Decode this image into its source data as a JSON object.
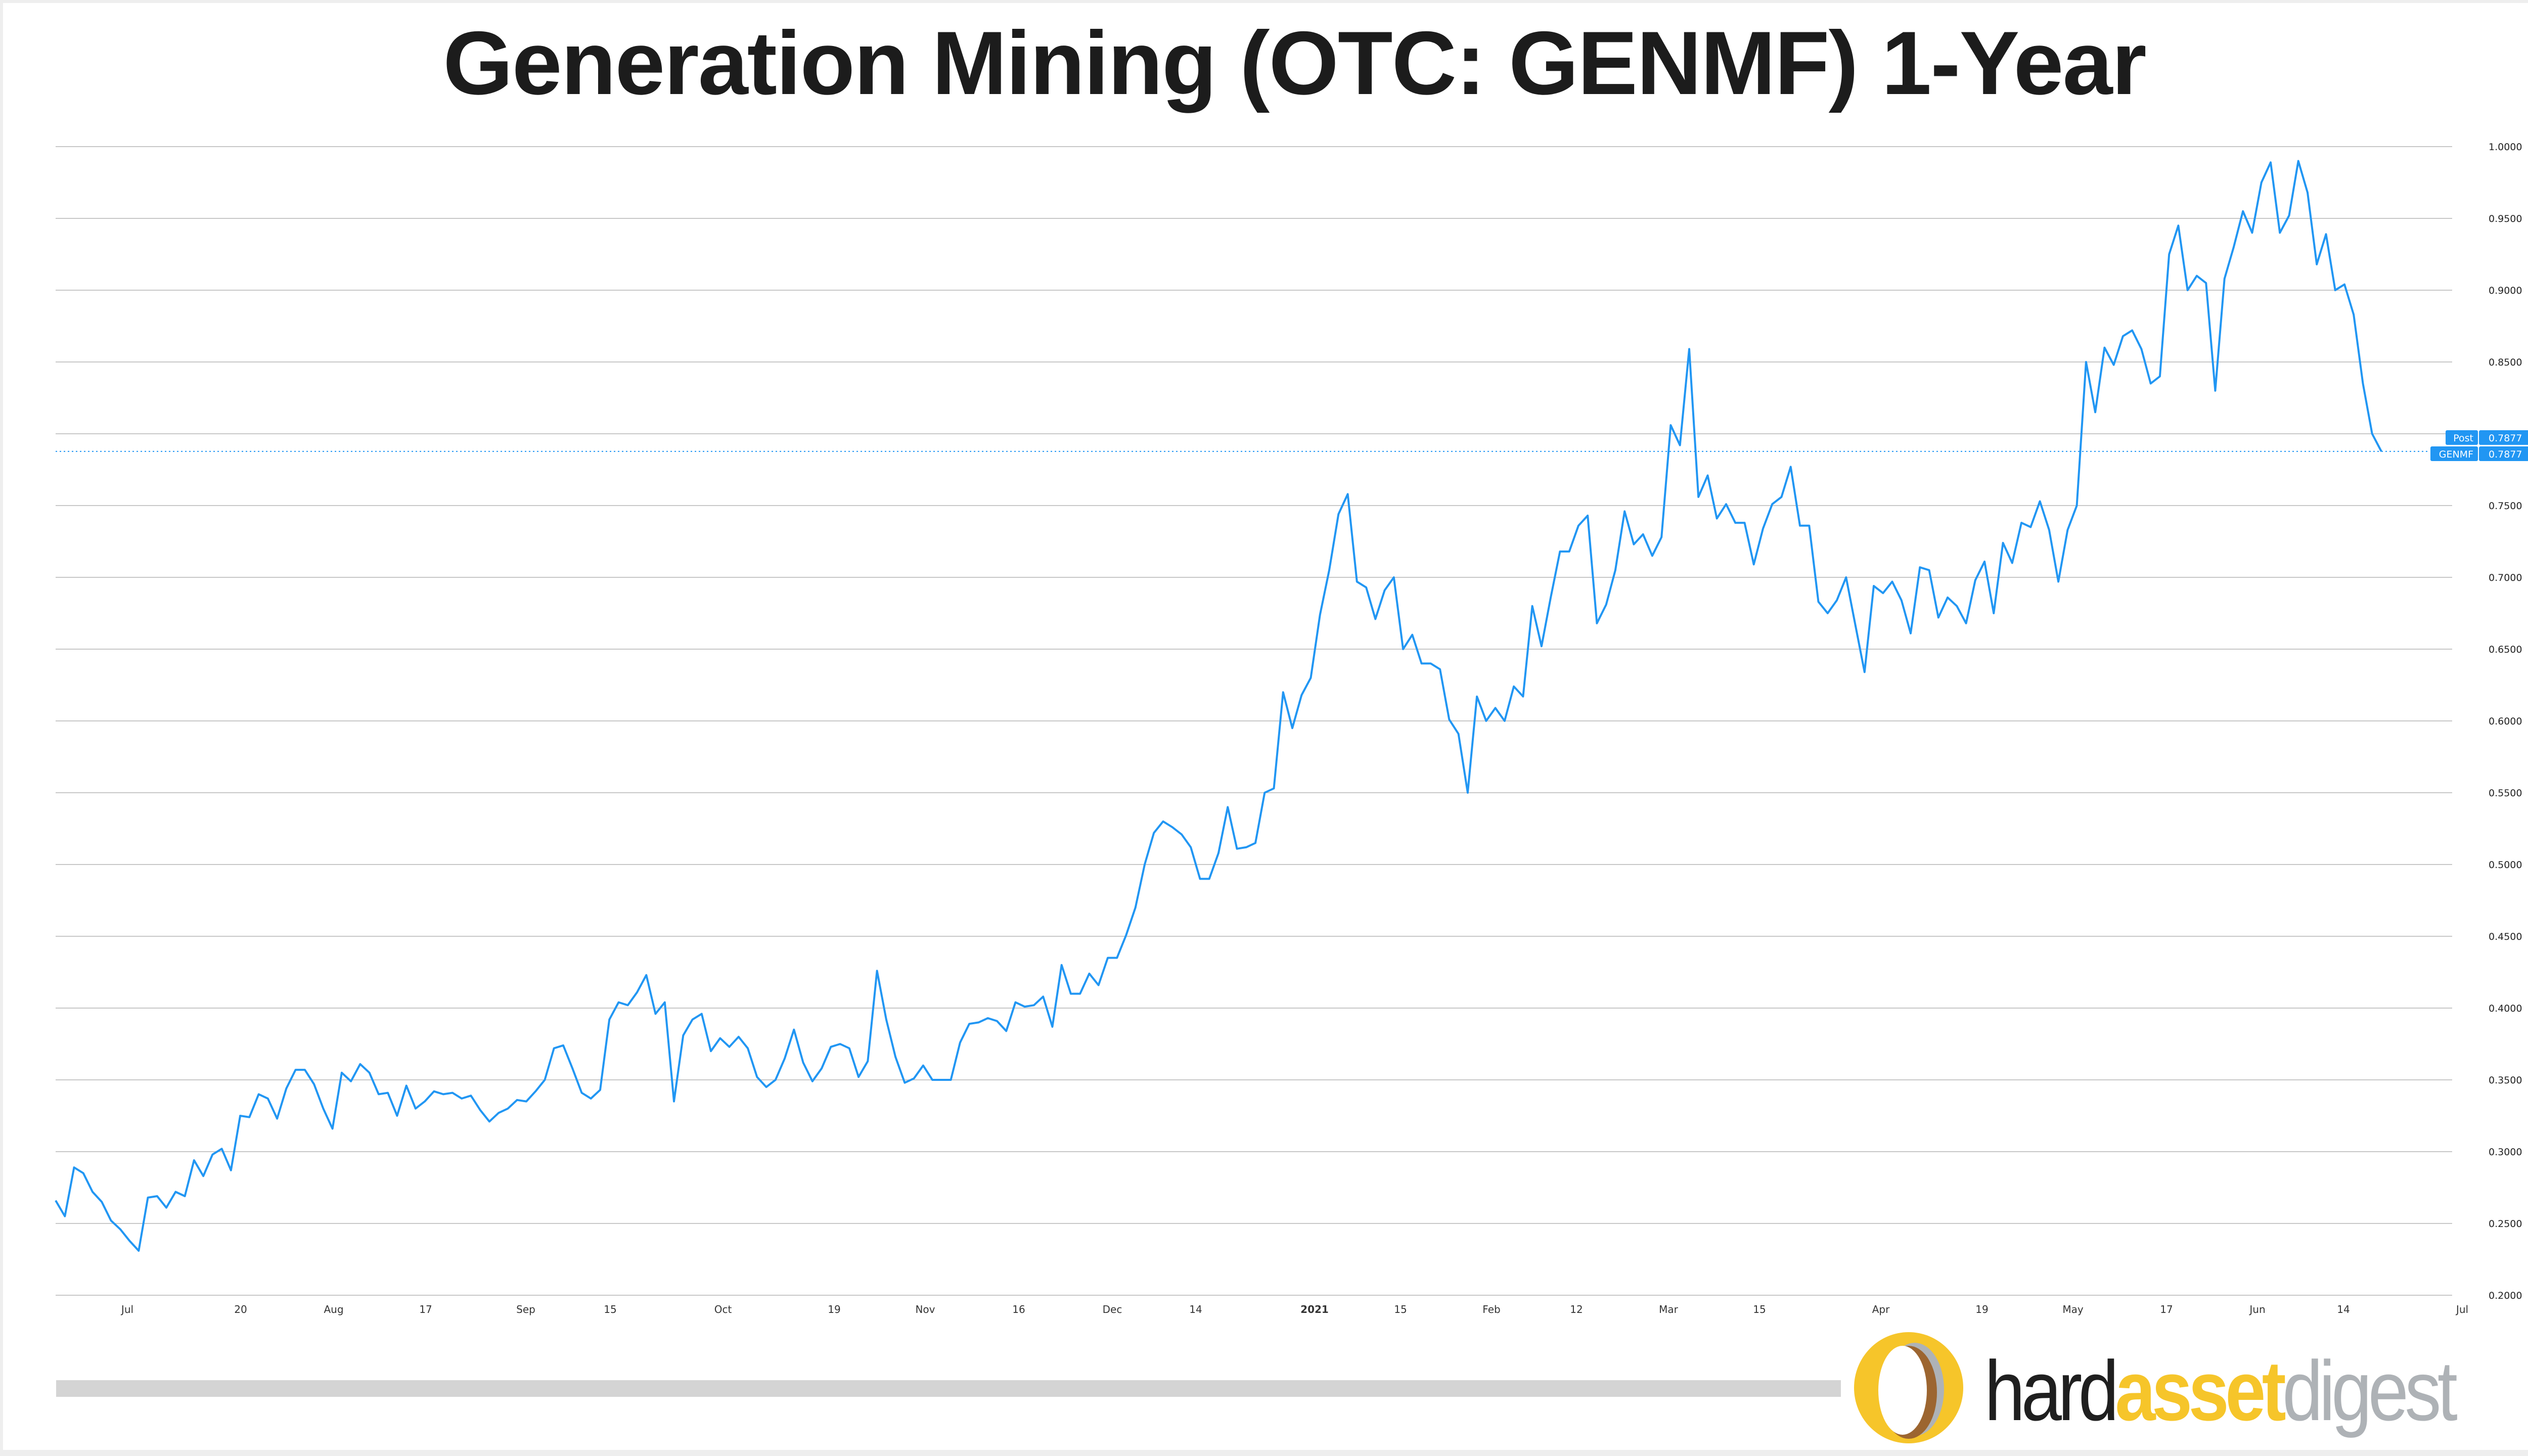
{
  "title": "Generation Mining (OTC: GENMF) 1-Year",
  "colors": {
    "line": "#2196f3",
    "grid": "#c8c8c8",
    "badge": "#2196f3",
    "logo_yellow": "#f6c52a",
    "logo_gray": "#aeb2b6",
    "logo_brown": "#9c6530"
  },
  "price_badges": [
    {
      "label": "Post",
      "value": "0.7877"
    },
    {
      "label": "GENMF",
      "value": "0.7877"
    }
  ],
  "logo": {
    "part1": "hard",
    "part2": "asset",
    "part3": "digest"
  },
  "chart_data": {
    "type": "line",
    "title": "Generation Mining (OTC: GENMF) 1-Year",
    "xlabel": "",
    "ylabel": "",
    "ylim": [
      0.2,
      1.0
    ],
    "grid": true,
    "legend": "none",
    "y_ticks": [
      "1.0000",
      "0.9500",
      "0.9000",
      "0.8500",
      "0.8000",
      "0.7500",
      "0.7000",
      "0.6500",
      "0.6000",
      "0.5500",
      "0.5000",
      "0.4500",
      "0.4000",
      "0.3500",
      "0.3000",
      "0.2500",
      "0.2000"
    ],
    "x_ticks": [
      "Jul",
      "20",
      "Aug",
      "17",
      "Sep",
      "15",
      "Oct",
      "19",
      "Nov",
      "16",
      "Dec",
      "14",
      "2021",
      "15",
      "Feb",
      "12",
      "Mar",
      "15",
      "Apr",
      "19",
      "May",
      "17",
      "Jun",
      "14",
      "Jul"
    ],
    "last_value": 0.7877,
    "series": [
      {
        "name": "GENMF",
        "values": [
          0.266,
          0.255,
          0.289,
          0.285,
          0.272,
          0.265,
          0.252,
          0.246,
          0.238,
          0.231,
          0.268,
          0.269,
          0.261,
          0.272,
          0.269,
          0.294,
          0.283,
          0.298,
          0.302,
          0.287,
          0.325,
          0.324,
          0.34,
          0.337,
          0.323,
          0.344,
          0.357,
          0.357,
          0.347,
          0.33,
          0.316,
          0.355,
          0.349,
          0.361,
          0.355,
          0.34,
          0.341,
          0.325,
          0.346,
          0.33,
          0.335,
          0.342,
          0.34,
          0.341,
          0.337,
          0.339,
          0.329,
          0.321,
          0.327,
          0.33,
          0.336,
          0.335,
          0.342,
          0.35,
          0.372,
          0.374,
          0.358,
          0.341,
          0.337,
          0.343,
          0.392,
          0.404,
          0.402,
          0.411,
          0.423,
          0.396,
          0.404,
          0.335,
          0.381,
          0.392,
          0.396,
          0.37,
          0.379,
          0.373,
          0.38,
          0.372,
          0.352,
          0.345,
          0.35,
          0.365,
          0.385,
          0.362,
          0.349,
          0.358,
          0.373,
          0.375,
          0.372,
          0.352,
          0.363,
          0.426,
          0.392,
          0.366,
          0.348,
          0.351,
          0.36,
          0.35,
          0.35,
          0.35,
          0.376,
          0.389,
          0.39,
          0.393,
          0.391,
          0.384,
          0.404,
          0.401,
          0.402,
          0.408,
          0.387,
          0.43,
          0.41,
          0.41,
          0.424,
          0.416,
          0.435,
          0.435,
          0.451,
          0.47,
          0.5,
          0.522,
          0.53,
          0.526,
          0.521,
          0.512,
          0.49,
          0.49,
          0.508,
          0.54,
          0.511,
          0.512,
          0.515,
          0.55,
          0.553,
          0.62,
          0.595,
          0.618,
          0.63,
          0.674,
          0.705,
          0.744,
          0.758,
          0.697,
          0.693,
          0.671,
          0.691,
          0.7,
          0.65,
          0.66,
          0.64,
          0.64,
          0.636,
          0.601,
          0.591,
          0.55,
          0.617,
          0.6,
          0.609,
          0.6,
          0.624,
          0.617,
          0.68,
          0.652,
          0.686,
          0.718,
          0.718,
          0.736,
          0.743,
          0.668,
          0.681,
          0.705,
          0.746,
          0.723,
          0.73,
          0.715,
          0.728,
          0.806,
          0.792,
          0.859,
          0.756,
          0.771,
          0.741,
          0.751,
          0.738,
          0.738,
          0.709,
          0.734,
          0.751,
          0.756,
          0.777,
          0.736,
          0.736,
          0.683,
          0.675,
          0.684,
          0.7,
          0.667,
          0.634,
          0.694,
          0.689,
          0.697,
          0.684,
          0.661,
          0.707,
          0.705,
          0.672,
          0.686,
          0.68,
          0.668,
          0.698,
          0.711,
          0.675,
          0.724,
          0.71,
          0.738,
          0.735,
          0.753,
          0.733,
          0.697,
          0.733,
          0.75,
          0.85,
          0.815,
          0.86,
          0.848,
          0.868,
          0.872,
          0.859,
          0.835,
          0.84,
          0.925,
          0.945,
          0.9,
          0.91,
          0.905,
          0.83,
          0.908,
          0.93,
          0.955,
          0.94,
          0.975,
          0.989,
          0.94,
          0.952,
          0.99,
          0.968,
          0.918,
          0.939,
          0.9,
          0.904,
          0.883,
          0.835,
          0.8,
          0.7877
        ]
      }
    ]
  }
}
